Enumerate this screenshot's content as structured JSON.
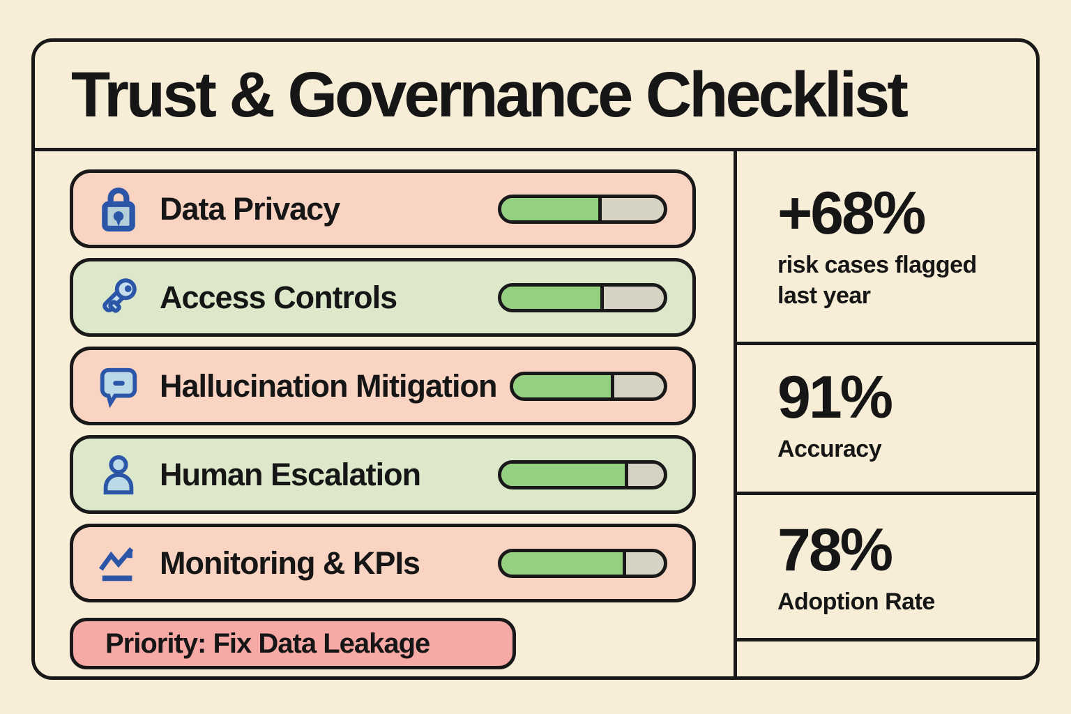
{
  "title": "Trust & Governance Checklist",
  "colors": {
    "background": "#f8eed8",
    "outline": "#191919",
    "item_pink": "#f9d4c3",
    "item_green": "#dde8ca",
    "priority_pink": "#f6a9a5",
    "progress_green": "#93d07f",
    "progress_track": "#d6d3c4",
    "icon_blue": "#2b56a7",
    "icon_light_blue": "#bcd9e8",
    "text": "#161616"
  },
  "checklist": {
    "items": [
      {
        "label": "Data Privacy",
        "icon": "lock-icon",
        "tone": "pink",
        "progress": 62
      },
      {
        "label": "Access Controls",
        "icon": "key-icon",
        "tone": "green",
        "progress": 63
      },
      {
        "label": "Hallucination Mitigation",
        "icon": "speech-bubble-icon",
        "tone": "pink",
        "progress": 67
      },
      {
        "label": "Human Escalation",
        "icon": "person-icon",
        "tone": "green",
        "progress": 78
      },
      {
        "label": "Monitoring & KPIs",
        "icon": "line-chart-icon",
        "tone": "pink",
        "progress": 77
      }
    ],
    "priority_note": "Priority: Fix Data Leakage"
  },
  "stats": [
    {
      "value": "+68%",
      "label": "risk cases flagged last year"
    },
    {
      "value": "91%",
      "label": "Accuracy"
    },
    {
      "value": "78%",
      "label": "Adoption Rate"
    }
  ]
}
